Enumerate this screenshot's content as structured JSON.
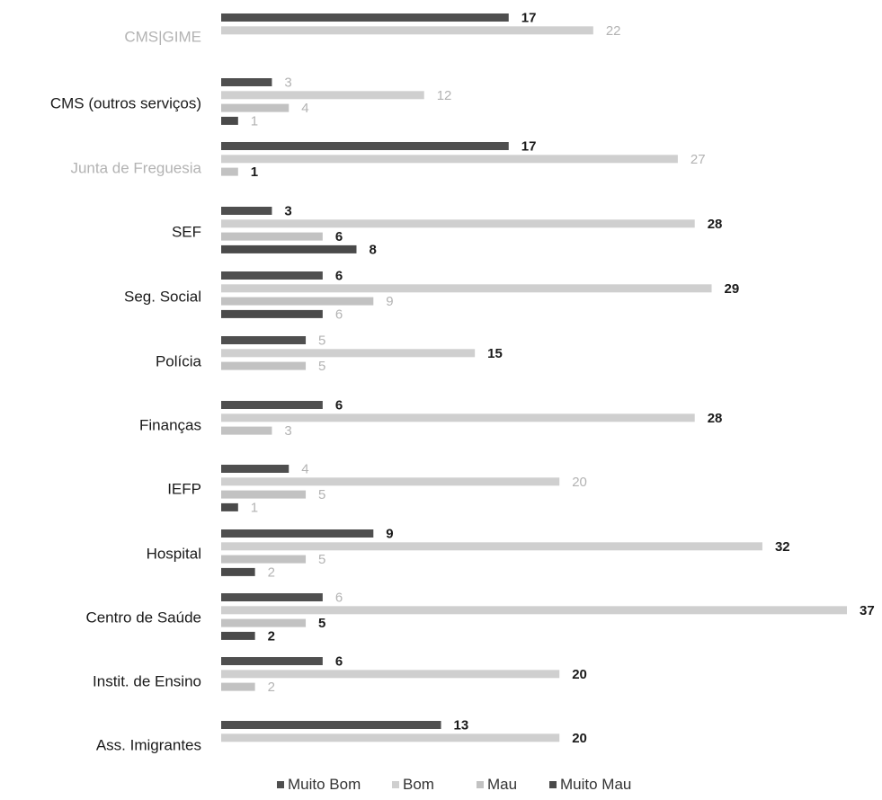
{
  "chart_data": {
    "type": "bar",
    "orientation": "horizontal",
    "categories": [
      "CMS|GIME",
      "CMS (outros serviços)",
      "Junta de Freguesia",
      "SEF",
      "Seg. Social",
      "Polícia",
      "Finanças",
      "IEFP",
      "Hospital",
      "Centro de Saúde",
      "Instit. de Ensino",
      "Ass. Imigrantes"
    ],
    "category_colors": [
      "#b3b3b3",
      "#1a1a1a",
      "#b3b3b3",
      "#1a1a1a",
      "#1a1a1a",
      "#1a1a1a",
      "#1a1a1a",
      "#1a1a1a",
      "#1a1a1a",
      "#1a1a1a",
      "#1a1a1a",
      "#1a1a1a"
    ],
    "series": [
      {
        "name": "Muito Bom",
        "color": "#4f4f4f",
        "values": [
          17,
          3,
          17,
          3,
          6,
          5,
          6,
          4,
          9,
          6,
          6,
          13
        ],
        "label_colors": [
          "#1a1a1a",
          "#b3b3b3",
          "#1a1a1a",
          "#1a1a1a",
          "#1a1a1a",
          "#b3b3b3",
          "#1a1a1a",
          "#b3b3b3",
          "#1a1a1a",
          "#b3b3b3",
          "#1a1a1a",
          "#1a1a1a"
        ]
      },
      {
        "name": "Bom",
        "color": "#cfcfcf",
        "values": [
          22,
          12,
          27,
          28,
          29,
          15,
          28,
          20,
          32,
          37,
          20,
          20
        ],
        "label_colors": [
          "#b3b3b3",
          "#b3b3b3",
          "#b3b3b3",
          "#1a1a1a",
          "#1a1a1a",
          "#1a1a1a",
          "#1a1a1a",
          "#b3b3b3",
          "#1a1a1a",
          "#1a1a1a",
          "#1a1a1a",
          "#1a1a1a"
        ]
      },
      {
        "name": "Mau",
        "color": "#c2c2c2",
        "values": [
          null,
          4,
          1,
          6,
          9,
          5,
          3,
          5,
          5,
          5,
          2,
          null
        ],
        "label_colors": [
          "#b3b3b3",
          "#b3b3b3",
          "#1a1a1a",
          "#1a1a1a",
          "#b3b3b3",
          "#b3b3b3",
          "#b3b3b3",
          "#b3b3b3",
          "#b3b3b3",
          "#1a1a1a",
          "#b3b3b3",
          "#b3b3b3"
        ]
      },
      {
        "name": "Muito Mau",
        "color": "#4a4a4a",
        "values": [
          null,
          1,
          null,
          8,
          6,
          null,
          null,
          1,
          2,
          2,
          null,
          null
        ],
        "label_colors": [
          "#b3b3b3",
          "#b3b3b3",
          "#b3b3b3",
          "#1a1a1a",
          "#b3b3b3",
          "#b3b3b3",
          "#b3b3b3",
          "#b3b3b3",
          "#b3b3b3",
          "#1a1a1a",
          "#b3b3b3",
          "#b3b3b3"
        ]
      }
    ],
    "xlim": [
      0,
      37
    ],
    "grid": false,
    "legend_position": "bottom"
  }
}
